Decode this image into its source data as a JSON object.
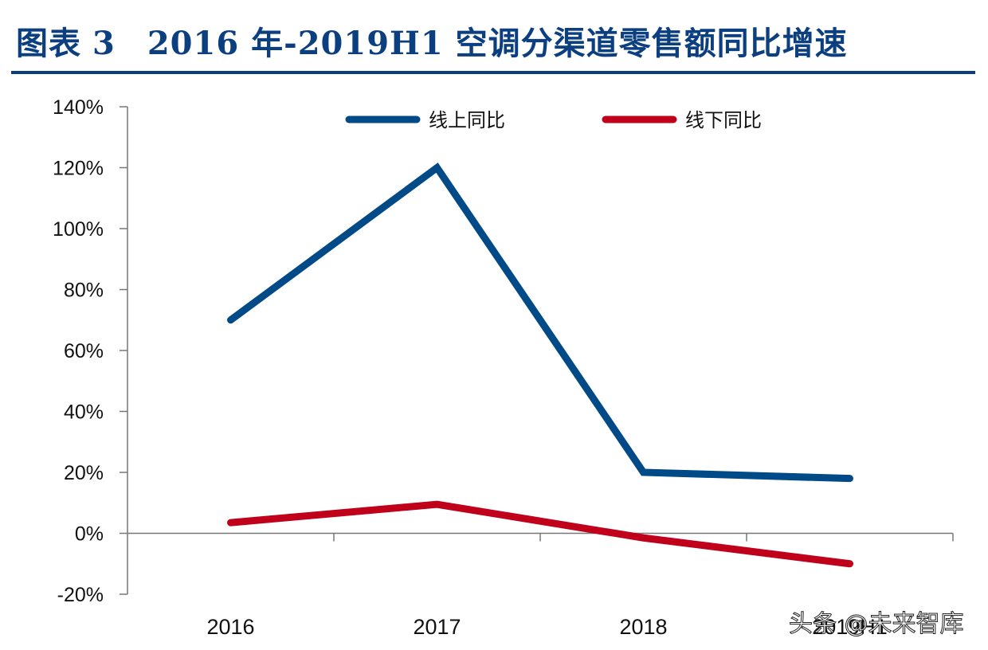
{
  "header": {
    "figure_label": "图表",
    "figure_number": "3",
    "title_text": "2016 年-2019H1 空调分渠道零售额同比增速"
  },
  "chart_data": {
    "type": "line",
    "title": "2016 年-2019H1 空调分渠道零售额同比增速",
    "xlabel": "",
    "ylabel": "",
    "categories": [
      "2016",
      "2017",
      "2018",
      "2019H1"
    ],
    "series": [
      {
        "name": "线上同比",
        "color": "#004a87",
        "values": [
          70,
          120,
          20,
          18
        ]
      },
      {
        "name": "线下同比",
        "color": "#c0001b",
        "values": [
          3.5,
          9.5,
          -1.5,
          -10
        ]
      }
    ],
    "ylim": [
      -20,
      140
    ],
    "yticks": [
      "140%",
      "120%",
      "100%",
      "80%",
      "60%",
      "40%",
      "20%",
      "0%",
      "-20%"
    ],
    "ytick_values": [
      140,
      120,
      100,
      80,
      60,
      40,
      20,
      0,
      -20
    ],
    "grid": false,
    "legend_position": "top"
  },
  "watermark": "头条 @未来智库"
}
